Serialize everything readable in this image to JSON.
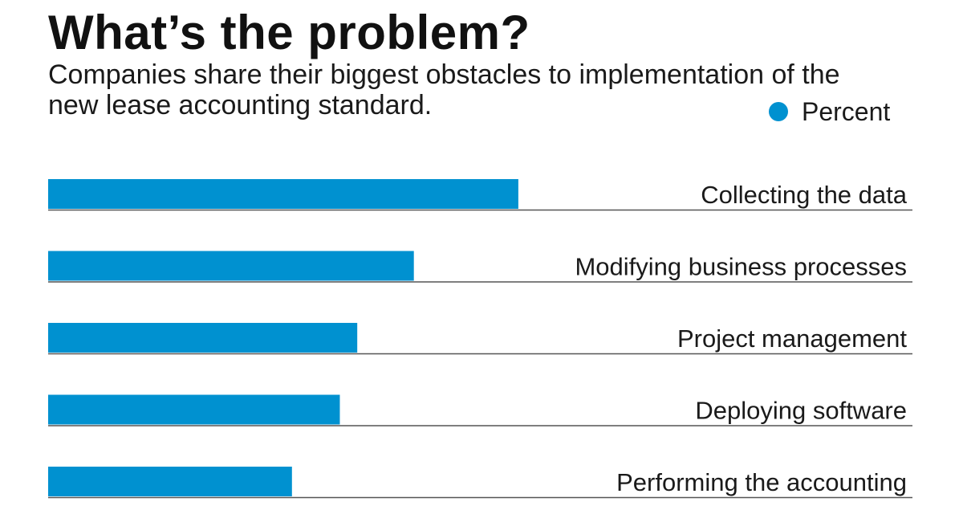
{
  "header": {
    "title": "What’s the problem?",
    "subtitle": "Companies share their biggest obstacles to implementation of the new lease accounting standard."
  },
  "legend": {
    "label": "Percent",
    "position": "top-right"
  },
  "colors": {
    "bar": "#0091d0",
    "baseline": "#555555",
    "text": "#1a1a1a"
  },
  "chart_data": {
    "type": "bar",
    "orientation": "horizontal",
    "title": "What’s the problem?",
    "subtitle": "Companies share their biggest obstacles to implementation of the new lease accounting standard.",
    "categories": [
      "Collecting the data",
      "Modifying business processes",
      "Project management",
      "Deploying software",
      "Performing the accounting"
    ],
    "series": [
      {
        "name": "Percent",
        "values": [
          54,
          42,
          35.5,
          33.5,
          28
        ]
      }
    ],
    "xlim": [
      0,
      100
    ],
    "grid": false,
    "legend_position": "top-right"
  }
}
